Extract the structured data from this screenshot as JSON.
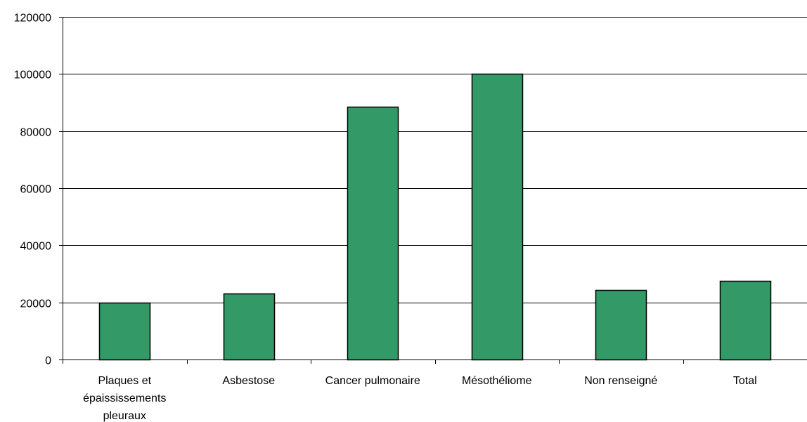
{
  "chart_data": {
    "type": "bar",
    "title": "",
    "xlabel": "",
    "ylabel": "",
    "categories": [
      [
        "Plaques et",
        "épaississements",
        "pleuraux"
      ],
      [
        "Asbestose"
      ],
      [
        "Cancer pulmonaire"
      ],
      [
        "Mésothéliome"
      ],
      [
        "Non renseigné"
      ],
      [
        "Total"
      ]
    ],
    "values": [
      20000,
      23000,
      88500,
      100000,
      24300,
      27500
    ],
    "ylim": [
      0,
      120000
    ],
    "yticks": [
      0,
      20000,
      40000,
      60000,
      80000,
      100000,
      120000
    ],
    "grid": true,
    "legend": "none",
    "bar_color": "#339966",
    "bar_edge_color": "#000000",
    "grid_color": "#000000"
  }
}
